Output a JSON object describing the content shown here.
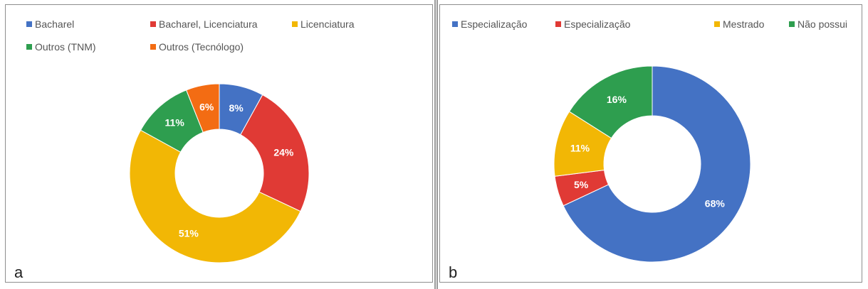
{
  "chart_data": [
    {
      "type": "pie",
      "panel_letter": "a",
      "legend_position": "top",
      "slices": [
        {
          "label": "Bacharel",
          "value": 8,
          "display": "8%",
          "color": "#4472c4"
        },
        {
          "label": "Bacharel, Licenciatura",
          "value": 24,
          "display": "24%",
          "color": "#e03a35"
        },
        {
          "label": "Licenciatura",
          "value": 51,
          "display": "51%",
          "color": "#f2b705"
        },
        {
          "label": "Outros (TNM)",
          "value": 11,
          "display": "11%",
          "color": "#2e9e4f"
        },
        {
          "label": "Outros (Tecnólogo)",
          "value": 6,
          "display": "6%",
          "color": "#f36c13"
        }
      ]
    },
    {
      "type": "pie",
      "panel_letter": "b",
      "legend_position": "top",
      "slices": [
        {
          "label": "Especialização",
          "value": 68,
          "display": "68%",
          "color": "#4472c4"
        },
        {
          "label": "Especialização",
          "value": 5,
          "display": "5%",
          "color": "#e03a35"
        },
        {
          "label": "Mestrado",
          "value": 11,
          "display": "11%",
          "color": "#f2b705"
        },
        {
          "label": "Não possui",
          "value": 16,
          "display": "16%",
          "color": "#2e9e4f"
        }
      ]
    }
  ]
}
